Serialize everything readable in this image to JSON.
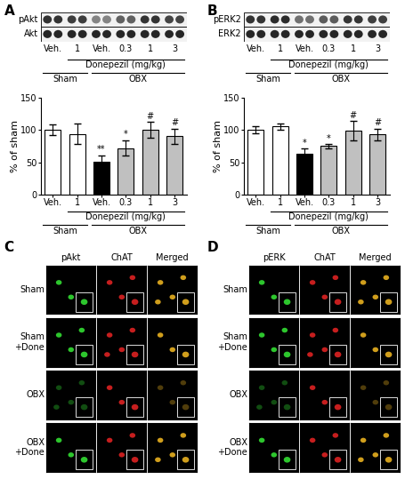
{
  "chart_data": [
    {
      "type": "bar",
      "panel": "A",
      "categories": [
        "Veh.",
        "1",
        "Veh.",
        "0.3",
        "1",
        "3"
      ],
      "values": [
        100,
        94,
        51,
        72,
        100,
        90
      ],
      "errors": [
        8,
        16,
        10,
        12,
        12,
        12
      ],
      "colors": [
        "#ffffff",
        "#ffffff",
        "#000000",
        "#c0c0c0",
        "#c0c0c0",
        "#c0c0c0"
      ],
      "significance": [
        null,
        null,
        "**",
        "*",
        "#",
        "#"
      ],
      "ylabel": "% of sham",
      "ylim": [
        0,
        150
      ],
      "yticks": [
        0,
        50,
        100,
        150
      ],
      "treatment": {
        "label": "Donepezil (mg/kg)",
        "span": [
          1,
          5
        ]
      },
      "groups": [
        {
          "label": "Sham",
          "span": [
            0,
            1
          ]
        },
        {
          "label": "OBX",
          "span": [
            2,
            5
          ]
        }
      ],
      "blot": {
        "rows": [
          "pAkt",
          "Akt"
        ]
      }
    },
    {
      "type": "bar",
      "panel": "B",
      "categories": [
        "Veh.",
        "1",
        "Veh.",
        "0.3",
        "1",
        "3"
      ],
      "values": [
        100,
        105,
        63,
        75,
        99,
        93
      ],
      "errors": [
        5,
        5,
        8,
        3,
        15,
        9
      ],
      "colors": [
        "#ffffff",
        "#ffffff",
        "#000000",
        "#c0c0c0",
        "#c0c0c0",
        "#c0c0c0"
      ],
      "significance": [
        null,
        null,
        "*",
        "*",
        "#",
        "#"
      ],
      "ylabel": "% of sham",
      "ylim": [
        0,
        150
      ],
      "yticks": [
        0,
        50,
        100,
        150
      ],
      "treatment": {
        "label": "Donepezil (mg/kg)",
        "span": [
          1,
          5
        ]
      },
      "groups": [
        {
          "label": "Sham",
          "span": [
            0,
            1
          ]
        },
        {
          "label": "OBX",
          "span": [
            2,
            5
          ]
        }
      ],
      "blot": {
        "rows": [
          "pERK2",
          "ERK2"
        ]
      }
    }
  ],
  "micrographs": [
    {
      "panel": "C",
      "columns": [
        "pAkt",
        "ChAT",
        "Merged"
      ],
      "rows": [
        "Sham",
        "Sham\n+Done",
        "OBX",
        "OBX\n+Done"
      ]
    },
    {
      "panel": "D",
      "columns": [
        "pERK",
        "ChAT",
        "Merged"
      ],
      "rows": [
        "Sham",
        "Sham\n+Done",
        "OBX",
        "OBX\n+Done"
      ]
    }
  ]
}
